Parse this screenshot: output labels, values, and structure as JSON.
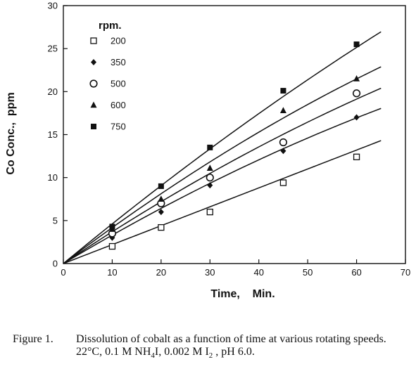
{
  "chart_data": {
    "type": "scatter",
    "title": "",
    "xlabel": "Time,    Min.",
    "ylabel": "Co Conc.,  ppm",
    "xlim": [
      0,
      70
    ],
    "ylim": [
      0,
      30
    ],
    "xticks": [
      0,
      10,
      20,
      30,
      40,
      50,
      60,
      70
    ],
    "yticks": [
      0,
      5,
      10,
      15,
      20,
      25,
      30
    ],
    "grid": false,
    "legend_title": "rpm.",
    "legend_placement": "top-left",
    "series": [
      {
        "name": "200",
        "marker": "open-square",
        "x": [
          10,
          20,
          30,
          45,
          60
        ],
        "y": [
          2.0,
          4.2,
          6.0,
          9.4,
          12.4
        ],
        "fit": [
          0,
          0.22,
          0
        ]
      },
      {
        "name": "350",
        "marker": "filled-diamond",
        "x": [
          10,
          20,
          30,
          45,
          60
        ],
        "y": [
          3.0,
          6.0,
          9.1,
          13.1,
          17.0
        ],
        "fit": [
          0,
          0.34,
          0.00096
        ]
      },
      {
        "name": "500",
        "marker": "open-circle",
        "x": [
          10,
          20,
          30,
          45,
          60
        ],
        "y": [
          3.5,
          7.0,
          10.0,
          14.1,
          19.8
        ],
        "fit": [
          0,
          0.38,
          0.00102
        ]
      },
      {
        "name": "600",
        "marker": "filled-triangle",
        "x": [
          10,
          20,
          30,
          45,
          60
        ],
        "y": [
          4.0,
          7.5,
          11.1,
          17.8,
          21.5
        ],
        "fit": [
          0,
          0.43,
          0.0012
        ]
      },
      {
        "name": "750",
        "marker": "filled-square",
        "x": [
          10,
          20,
          30,
          45,
          60
        ],
        "y": [
          4.3,
          9.0,
          13.5,
          20.1,
          25.5
        ],
        "fit": [
          0,
          0.47,
          0.00085
        ]
      }
    ]
  },
  "caption": {
    "label": "Figure 1.",
    "line1": "Dissolution of cobalt as a function of time at various rotating speeds.",
    "line2_a": "22°C, 0.1 M NH",
    "line2_sub1": "4",
    "line2_b": "I, 0.002 M I",
    "line2_sub2": "2",
    "line2_c": " , pH 6.0."
  }
}
